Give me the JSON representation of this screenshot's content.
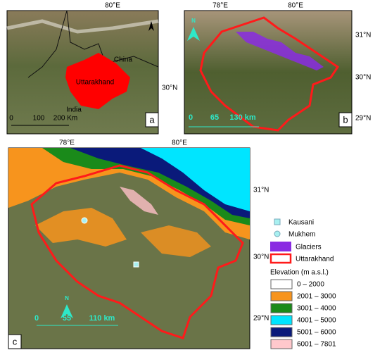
{
  "panels": {
    "a": {
      "label": "a",
      "lon_labels": [
        "80°E"
      ],
      "lat_labels": [
        "30°N"
      ],
      "places": [
        "China",
        "Uttarakhand",
        "India"
      ],
      "scale": [
        "0",
        "100",
        "200 Km"
      ]
    },
    "b": {
      "label": "b",
      "north": "N",
      "lon_labels": [
        "78°E",
        "80°E"
      ],
      "lat_labels": [
        "31°N",
        "30°N",
        "29°N"
      ],
      "scale": [
        "0",
        "65",
        "130 km"
      ]
    },
    "c": {
      "label": "c",
      "north": "N",
      "lon_labels": [
        "78°E",
        "80°E"
      ],
      "lat_labels": [
        "31°N",
        "30°N",
        "29°N"
      ],
      "scale": [
        "0",
        "55",
        "110 km"
      ]
    }
  },
  "legend": {
    "points": [
      "Kausani",
      "Mukhem"
    ],
    "glaciers": "Glaciers",
    "boundary": "Uttarakhand",
    "elevation_title": "Elevation (m a.s.l.)",
    "classes": [
      "0 – 2000",
      "2001 – 3000",
      "3001 – 4000",
      "4001 – 5000",
      "5001 – 6000",
      "6001 – 7801"
    ]
  }
}
